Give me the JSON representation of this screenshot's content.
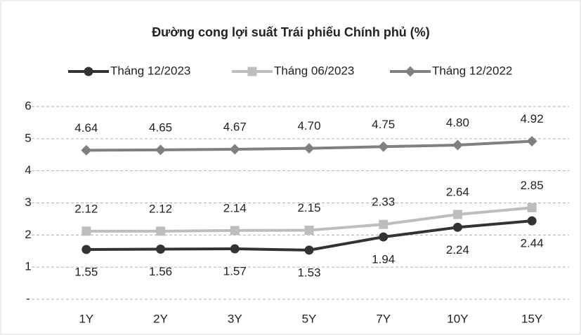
{
  "chart_data": {
    "type": "line",
    "title": "Đường cong lợi suất Trái phiếu Chính phủ (%)",
    "categories": [
      "1Y",
      "2Y",
      "3Y",
      "5Y",
      "7Y",
      "10Y",
      "15Y"
    ],
    "series": [
      {
        "name": "Tháng 12/2023",
        "color": "#333333",
        "marker": "circle",
        "label_position": "below",
        "values": [
          1.55,
          1.56,
          1.57,
          1.53,
          1.94,
          2.24,
          2.44
        ],
        "value_labels": [
          "1.55",
          "1.56",
          "1.57",
          "1.53",
          "1.94",
          "2.24",
          "2.44"
        ]
      },
      {
        "name": "Tháng 06/2023",
        "color": "#bdbdbd",
        "marker": "square",
        "label_position": "above",
        "values": [
          2.12,
          2.12,
          2.14,
          2.15,
          2.33,
          2.64,
          2.85
        ],
        "value_labels": [
          "2.12",
          "2.12",
          "2.14",
          "2.15",
          "2.33",
          "2.64",
          "2.85"
        ]
      },
      {
        "name": "Tháng 12/2022",
        "color": "#808080",
        "marker": "diamond",
        "label_position": "above",
        "values": [
          4.64,
          4.65,
          4.67,
          4.7,
          4.75,
          4.8,
          4.92
        ],
        "value_labels": [
          "4.64",
          "4.65",
          "4.67",
          "4.70",
          "4.75",
          "4.80",
          "4.92"
        ]
      }
    ],
    "ylim": [
      0,
      6
    ],
    "yticks": [
      {
        "value": 0,
        "label": "-"
      },
      1,
      2,
      3,
      4,
      5,
      6
    ],
    "grid": true,
    "legend": "top"
  }
}
